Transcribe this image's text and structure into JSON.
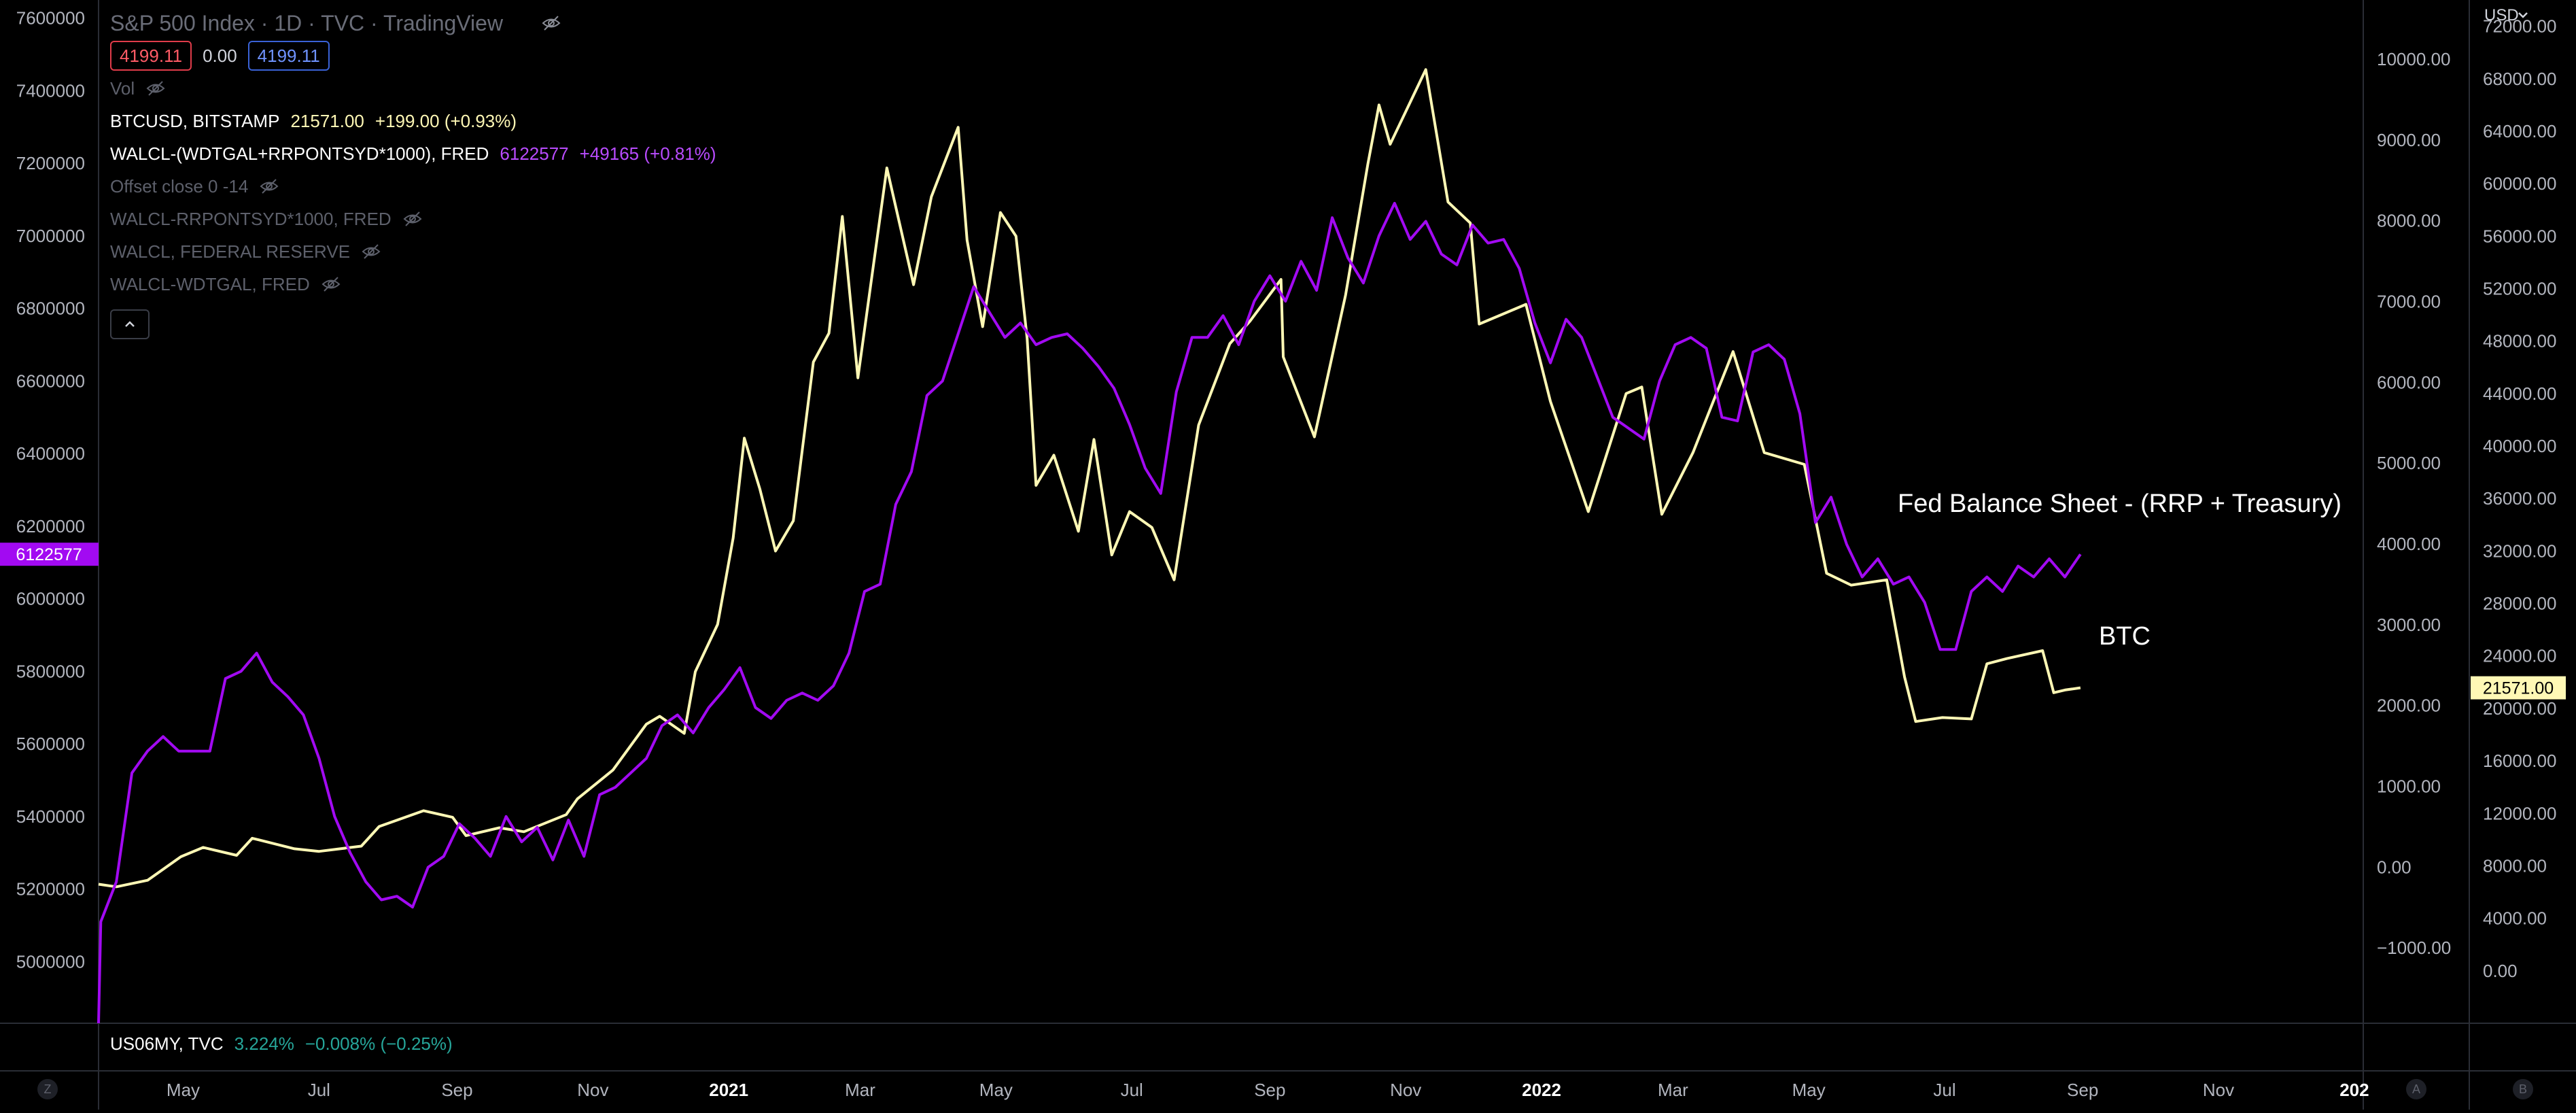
{
  "chart_data": {
    "type": "line",
    "main_symbol_title": "S&P 500 Index · 1D · TVC · TradingView",
    "price_boxes": {
      "open": "4199.11",
      "change": "0.00",
      "close": "4199.11"
    },
    "legend": {
      "vol": "Vol",
      "btc": {
        "name": "BTCUSD, BITSTAMP",
        "value": "21571.00",
        "change": "+199.00 (+0.93%)"
      },
      "fed": {
        "name": "WALCL-(WDTGAL+RRPONTSYD*1000), FRED",
        "value": "6122577",
        "change": "+49165 (+0.81%)"
      },
      "hidden": [
        "Offset close 0 -14",
        "WALCL-RRPONTSYD*1000, FRED",
        "WALCL, FEDERAL RESERVE",
        "WALCL-WDTGAL, FRED"
      ]
    },
    "bottom_legend": {
      "name": "US06MY, TVC",
      "value": "3.224%",
      "change": "−0.008% (−0.25%)"
    },
    "annotations": {
      "fed": "Fed Balance Sheet - (RRP + Treasury)",
      "btc": "BTC"
    },
    "x_ticks": [
      {
        "label": "May",
        "date": "2020-05-01",
        "bold": false
      },
      {
        "label": "Jul",
        "date": "2020-07-01",
        "bold": false
      },
      {
        "label": "Sep",
        "date": "2020-09-01",
        "bold": false
      },
      {
        "label": "Nov",
        "date": "2020-11-01",
        "bold": false
      },
      {
        "label": "2021",
        "date": "2021-01-01",
        "bold": true
      },
      {
        "label": "Mar",
        "date": "2021-03-01",
        "bold": false
      },
      {
        "label": "May",
        "date": "2021-05-01",
        "bold": false
      },
      {
        "label": "Jul",
        "date": "2021-07-01",
        "bold": false
      },
      {
        "label": "Sep",
        "date": "2021-09-01",
        "bold": false
      },
      {
        "label": "Nov",
        "date": "2021-11-01",
        "bold": false
      },
      {
        "label": "2022",
        "date": "2022-01-01",
        "bold": true
      },
      {
        "label": "Mar",
        "date": "2022-03-01",
        "bold": false
      },
      {
        "label": "May",
        "date": "2022-05-01",
        "bold": false
      },
      {
        "label": "Jul",
        "date": "2022-07-01",
        "bold": false
      },
      {
        "label": "Sep",
        "date": "2022-09-01",
        "bold": false
      },
      {
        "label": "Nov",
        "date": "2022-11-01",
        "bold": false
      },
      {
        "label": "202",
        "date": "2023-01-01",
        "bold": true
      }
    ],
    "x_range": [
      "2020-03-24",
      "2023-01-05"
    ],
    "left_axis": {
      "range": [
        4830000,
        7650000
      ],
      "ticks": [
        "7600000",
        "7400000",
        "7200000",
        "7000000",
        "6800000",
        "6600000",
        "6400000",
        "6200000",
        "6000000",
        "5800000",
        "5600000",
        "5400000",
        "5200000",
        "5000000"
      ],
      "current_label": "6122577"
    },
    "mid_axis": {
      "range": [
        -1932,
        10732
      ],
      "ticks": [
        "10000.00",
        "9000.00",
        "8000.00",
        "7000.00",
        "6000.00",
        "5000.00",
        "4000.00",
        "3000.00",
        "2000.00",
        "1000.00",
        "0.00",
        "−1000.00"
      ]
    },
    "right_axis": {
      "currency": "USD",
      "range": [
        -4000,
        74000
      ],
      "ticks": [
        "72000.00",
        "68000.00",
        "64000.00",
        "60000.00",
        "56000.00",
        "52000.00",
        "48000.00",
        "44000.00",
        "40000.00",
        "36000.00",
        "32000.00",
        "28000.00",
        "24000.00",
        "20000.00",
        "16000.00",
        "12000.00",
        "8000.00",
        "4000.00",
        "0.00"
      ],
      "current_label": "21571.00"
    },
    "corner_buttons": {
      "left": "Z",
      "mid": "A",
      "right": "B"
    },
    "colors": {
      "btc": "#fff8b5",
      "fed": "#a20af2",
      "background": "#000000",
      "divider": "#2a2d35",
      "text": "#b2b5be"
    },
    "series": [
      {
        "name": "BTCUSD, BITSTAMP",
        "axis": "right",
        "color": "#fff8b5",
        "points": [
          [
            "2020-03-24",
            6600
          ],
          [
            "2020-04-01",
            6400
          ],
          [
            "2020-04-15",
            6900
          ],
          [
            "2020-04-30",
            8700
          ],
          [
            "2020-05-10",
            9400
          ],
          [
            "2020-05-25",
            8800
          ],
          [
            "2020-06-01",
            10100
          ],
          [
            "2020-06-20",
            9300
          ],
          [
            "2020-07-01",
            9100
          ],
          [
            "2020-07-20",
            9500
          ],
          [
            "2020-07-28",
            11000
          ],
          [
            "2020-08-17",
            12200
          ],
          [
            "2020-08-30",
            11700
          ],
          [
            "2020-09-05",
            10300
          ],
          [
            "2020-09-20",
            10900
          ],
          [
            "2020-10-01",
            10600
          ],
          [
            "2020-10-20",
            11900
          ],
          [
            "2020-10-25",
            13100
          ],
          [
            "2020-11-10",
            15300
          ],
          [
            "2020-11-25",
            18800
          ],
          [
            "2020-12-01",
            19400
          ],
          [
            "2020-12-12",
            18100
          ],
          [
            "2020-12-17",
            22800
          ],
          [
            "2020-12-27",
            26400
          ],
          [
            "2021-01-03",
            33000
          ],
          [
            "2021-01-08",
            40600
          ],
          [
            "2021-01-15",
            36700
          ],
          [
            "2021-01-22",
            32000
          ],
          [
            "2021-01-30",
            34300
          ],
          [
            "2021-02-08",
            46400
          ],
          [
            "2021-02-15",
            48600
          ],
          [
            "2021-02-21",
            57500
          ],
          [
            "2021-02-28",
            45200
          ],
          [
            "2021-03-13",
            61200
          ],
          [
            "2021-03-25",
            52300
          ],
          [
            "2021-04-02",
            59000
          ],
          [
            "2021-04-14",
            64300
          ],
          [
            "2021-04-18",
            55700
          ],
          [
            "2021-04-25",
            49100
          ],
          [
            "2021-05-03",
            57800
          ],
          [
            "2021-05-10",
            56000
          ],
          [
            "2021-05-15",
            48200
          ],
          [
            "2021-05-19",
            37000
          ],
          [
            "2021-05-27",
            39300
          ],
          [
            "2021-06-07",
            33500
          ],
          [
            "2021-06-14",
            40500
          ],
          [
            "2021-06-22",
            31700
          ],
          [
            "2021-06-30",
            35000
          ],
          [
            "2021-07-10",
            33800
          ],
          [
            "2021-07-20",
            29800
          ],
          [
            "2021-07-31",
            41600
          ],
          [
            "2021-08-14",
            47800
          ],
          [
            "2021-08-23",
            49500
          ],
          [
            "2021-09-06",
            52700
          ],
          [
            "2021-09-07",
            46800
          ],
          [
            "2021-09-21",
            40700
          ],
          [
            "2021-10-05",
            51500
          ],
          [
            "2021-10-15",
            61500
          ],
          [
            "2021-10-20",
            66000
          ],
          [
            "2021-10-25",
            63000
          ],
          [
            "2021-11-10",
            68700
          ],
          [
            "2021-11-20",
            58600
          ],
          [
            "2021-11-30",
            57000
          ],
          [
            "2021-12-04",
            49300
          ],
          [
            "2021-12-25",
            50800
          ],
          [
            "2022-01-05",
            43400
          ],
          [
            "2022-01-22",
            35000
          ],
          [
            "2022-02-08",
            44000
          ],
          [
            "2022-02-15",
            44500
          ],
          [
            "2022-02-24",
            34800
          ],
          [
            "2022-03-10",
            39500
          ],
          [
            "2022-03-28",
            47200
          ],
          [
            "2022-04-11",
            39500
          ],
          [
            "2022-04-29",
            38600
          ],
          [
            "2022-05-09",
            30300
          ],
          [
            "2022-05-20",
            29400
          ],
          [
            "2022-06-05",
            29800
          ],
          [
            "2022-06-13",
            22400
          ],
          [
            "2022-06-18",
            19000
          ],
          [
            "2022-06-30",
            19300
          ],
          [
            "2022-07-13",
            19200
          ],
          [
            "2022-07-20",
            23400
          ],
          [
            "2022-07-29",
            23800
          ],
          [
            "2022-08-14",
            24400
          ],
          [
            "2022-08-19",
            21200
          ],
          [
            "2022-08-24",
            21400
          ],
          [
            "2022-08-31",
            21571
          ]
        ]
      },
      {
        "name": "WALCL-(WDTGAL+RRPONTSYD*1000), FRED",
        "axis": "left",
        "color": "#a20af2",
        "points": [
          [
            "2020-03-24",
            4830000
          ],
          [
            "2020-03-25",
            5110000
          ],
          [
            "2020-04-01",
            5220000
          ],
          [
            "2020-04-08",
            5520000
          ],
          [
            "2020-04-15",
            5580000
          ],
          [
            "2020-04-22",
            5620000
          ],
          [
            "2020-04-29",
            5580000
          ],
          [
            "2020-05-13",
            5580000
          ],
          [
            "2020-05-20",
            5780000
          ],
          [
            "2020-05-27",
            5800000
          ],
          [
            "2020-06-03",
            5850000
          ],
          [
            "2020-06-10",
            5770000
          ],
          [
            "2020-06-17",
            5730000
          ],
          [
            "2020-06-24",
            5680000
          ],
          [
            "2020-07-01",
            5560000
          ],
          [
            "2020-07-08",
            5400000
          ],
          [
            "2020-07-15",
            5300000
          ],
          [
            "2020-07-22",
            5220000
          ],
          [
            "2020-07-29",
            5170000
          ],
          [
            "2020-08-05",
            5180000
          ],
          [
            "2020-08-12",
            5150000
          ],
          [
            "2020-08-19",
            5260000
          ],
          [
            "2020-08-26",
            5290000
          ],
          [
            "2020-09-02",
            5380000
          ],
          [
            "2020-09-09",
            5340000
          ],
          [
            "2020-09-16",
            5290000
          ],
          [
            "2020-09-23",
            5400000
          ],
          [
            "2020-09-30",
            5330000
          ],
          [
            "2020-10-07",
            5370000
          ],
          [
            "2020-10-14",
            5280000
          ],
          [
            "2020-10-21",
            5390000
          ],
          [
            "2020-10-28",
            5290000
          ],
          [
            "2020-11-04",
            5460000
          ],
          [
            "2020-11-11",
            5480000
          ],
          [
            "2020-11-18",
            5520000
          ],
          [
            "2020-11-25",
            5560000
          ],
          [
            "2020-12-02",
            5650000
          ],
          [
            "2020-12-09",
            5680000
          ],
          [
            "2020-12-16",
            5630000
          ],
          [
            "2020-12-23",
            5700000
          ],
          [
            "2020-12-30",
            5750000
          ],
          [
            "2021-01-06",
            5810000
          ],
          [
            "2021-01-13",
            5700000
          ],
          [
            "2021-01-20",
            5670000
          ],
          [
            "2021-01-27",
            5720000
          ],
          [
            "2021-02-03",
            5740000
          ],
          [
            "2021-02-10",
            5720000
          ],
          [
            "2021-02-17",
            5760000
          ],
          [
            "2021-02-24",
            5850000
          ],
          [
            "2021-03-03",
            6020000
          ],
          [
            "2021-03-10",
            6040000
          ],
          [
            "2021-03-17",
            6260000
          ],
          [
            "2021-03-24",
            6350000
          ],
          [
            "2021-03-31",
            6560000
          ],
          [
            "2021-04-07",
            6600000
          ],
          [
            "2021-04-14",
            6730000
          ],
          [
            "2021-04-21",
            6860000
          ],
          [
            "2021-04-28",
            6790000
          ],
          [
            "2021-05-05",
            6720000
          ],
          [
            "2021-05-12",
            6760000
          ],
          [
            "2021-05-19",
            6700000
          ],
          [
            "2021-05-26",
            6720000
          ],
          [
            "2021-06-02",
            6730000
          ],
          [
            "2021-06-09",
            6690000
          ],
          [
            "2021-06-16",
            6640000
          ],
          [
            "2021-06-23",
            6580000
          ],
          [
            "2021-06-30",
            6480000
          ],
          [
            "2021-07-07",
            6360000
          ],
          [
            "2021-07-14",
            6290000
          ],
          [
            "2021-07-21",
            6570000
          ],
          [
            "2021-07-28",
            6720000
          ],
          [
            "2021-08-04",
            6720000
          ],
          [
            "2021-08-11",
            6780000
          ],
          [
            "2021-08-18",
            6700000
          ],
          [
            "2021-08-25",
            6820000
          ],
          [
            "2021-09-01",
            6890000
          ],
          [
            "2021-09-08",
            6820000
          ],
          [
            "2021-09-15",
            6930000
          ],
          [
            "2021-09-22",
            6850000
          ],
          [
            "2021-09-29",
            7050000
          ],
          [
            "2021-10-06",
            6940000
          ],
          [
            "2021-10-13",
            6870000
          ],
          [
            "2021-10-20",
            7000000
          ],
          [
            "2021-10-27",
            7090000
          ],
          [
            "2021-11-03",
            6990000
          ],
          [
            "2021-11-10",
            7040000
          ],
          [
            "2021-11-17",
            6950000
          ],
          [
            "2021-11-24",
            6920000
          ],
          [
            "2021-12-01",
            7030000
          ],
          [
            "2021-12-08",
            6980000
          ],
          [
            "2021-12-15",
            6990000
          ],
          [
            "2021-12-22",
            6910000
          ],
          [
            "2021-12-29",
            6760000
          ],
          [
            "2022-01-05",
            6650000
          ],
          [
            "2022-01-12",
            6770000
          ],
          [
            "2022-01-19",
            6720000
          ],
          [
            "2022-01-26",
            6610000
          ],
          [
            "2022-02-02",
            6500000
          ],
          [
            "2022-02-09",
            6470000
          ],
          [
            "2022-02-16",
            6440000
          ],
          [
            "2022-02-23",
            6600000
          ],
          [
            "2022-03-02",
            6700000
          ],
          [
            "2022-03-09",
            6720000
          ],
          [
            "2022-03-16",
            6690000
          ],
          [
            "2022-03-23",
            6500000
          ],
          [
            "2022-03-30",
            6490000
          ],
          [
            "2022-04-06",
            6680000
          ],
          [
            "2022-04-13",
            6700000
          ],
          [
            "2022-04-20",
            6660000
          ],
          [
            "2022-04-27",
            6510000
          ],
          [
            "2022-05-04",
            6210000
          ],
          [
            "2022-05-11",
            6280000
          ],
          [
            "2022-05-18",
            6150000
          ],
          [
            "2022-05-25",
            6060000
          ],
          [
            "2022-06-01",
            6110000
          ],
          [
            "2022-06-08",
            6040000
          ],
          [
            "2022-06-15",
            6060000
          ],
          [
            "2022-06-22",
            5990000
          ],
          [
            "2022-06-29",
            5860000
          ],
          [
            "2022-07-06",
            5860000
          ],
          [
            "2022-07-13",
            6020000
          ],
          [
            "2022-07-20",
            6060000
          ],
          [
            "2022-07-27",
            6020000
          ],
          [
            "2022-08-03",
            6090000
          ],
          [
            "2022-08-10",
            6060000
          ],
          [
            "2022-08-17",
            6110000
          ],
          [
            "2022-08-24",
            6060000
          ],
          [
            "2022-08-31",
            6122577
          ]
        ]
      }
    ]
  }
}
